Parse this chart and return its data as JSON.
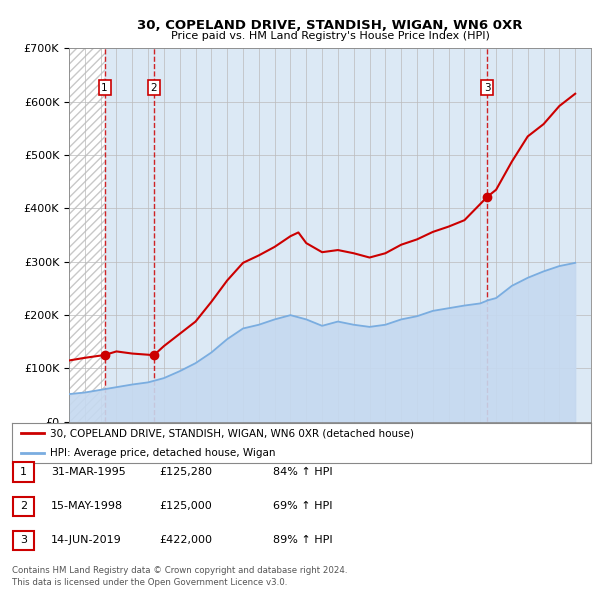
{
  "title": "30, COPELAND DRIVE, STANDISH, WIGAN, WN6 0XR",
  "subtitle": "Price paid vs. HM Land Registry's House Price Index (HPI)",
  "xlim": [
    1993,
    2026
  ],
  "ylim": [
    0,
    700000
  ],
  "yticks": [
    0,
    100000,
    200000,
    300000,
    400000,
    500000,
    600000,
    700000
  ],
  "ytick_labels": [
    "£0",
    "£100K",
    "£200K",
    "£300K",
    "£400K",
    "£500K",
    "£600K",
    "£700K"
  ],
  "sales": [
    {
      "date": 1995.25,
      "price": 125280,
      "label": "1"
    },
    {
      "date": 1998.37,
      "price": 125000,
      "label": "2"
    },
    {
      "date": 2019.45,
      "price": 422000,
      "label": "3"
    }
  ],
  "sale_color": "#cc0000",
  "hpi_color": "#7aade0",
  "hpi_fill_color": "#c5d9f0",
  "legend_sale_label": "30, COPELAND DRIVE, STANDISH, WIGAN, WN6 0XR (detached house)",
  "legend_hpi_label": "HPI: Average price, detached house, Wigan",
  "table_rows": [
    {
      "num": "1",
      "date": "31-MAR-1995",
      "price": "£125,280",
      "hpi": "84% ↑ HPI"
    },
    {
      "num": "2",
      "date": "15-MAY-1998",
      "price": "£125,000",
      "hpi": "69% ↑ HPI"
    },
    {
      "num": "3",
      "date": "14-JUN-2019",
      "price": "£422,000",
      "hpi": "89% ↑ HPI"
    }
  ],
  "footer": "Contains HM Land Registry data © Crown copyright and database right 2024.\nThis data is licensed under the Open Government Licence v3.0.",
  "bg_plot_color": "#dce9f5",
  "hatch_color": "#c8c8c8",
  "years_hpi": [
    1993,
    1994,
    1995,
    1996,
    1997,
    1998,
    1999,
    2000,
    2001,
    2002,
    2003,
    2004,
    2005,
    2006,
    2007,
    2008,
    2009,
    2010,
    2011,
    2012,
    2013,
    2014,
    2015,
    2016,
    2017,
    2018,
    2019,
    2019.5,
    2020,
    2021,
    2022,
    2023,
    2024,
    2025
  ],
  "hpi_values": [
    52000,
    55000,
    60000,
    65000,
    70000,
    74000,
    82000,
    95000,
    110000,
    130000,
    155000,
    175000,
    182000,
    192000,
    200000,
    192000,
    180000,
    188000,
    182000,
    178000,
    182000,
    192000,
    198000,
    208000,
    213000,
    218000,
    222000,
    228000,
    232000,
    255000,
    270000,
    282000,
    292000,
    298000
  ],
  "years_prop": [
    1993,
    1994,
    1995.25,
    1996,
    1997,
    1998.37,
    1999,
    2000,
    2001,
    2002,
    2003,
    2004,
    2005,
    2006,
    2007,
    2007.5,
    2008,
    2009,
    2010,
    2011,
    2012,
    2013,
    2014,
    2015,
    2016,
    2017,
    2018,
    2019.45,
    2020,
    2021,
    2022,
    2023,
    2024,
    2025
  ],
  "prop_values": [
    115000,
    120000,
    125280,
    132000,
    128000,
    125000,
    142000,
    165000,
    188000,
    225000,
    265000,
    298000,
    312000,
    328000,
    348000,
    355000,
    335000,
    318000,
    322000,
    316000,
    308000,
    316000,
    332000,
    342000,
    356000,
    366000,
    378000,
    422000,
    435000,
    488000,
    535000,
    558000,
    592000,
    615000
  ]
}
